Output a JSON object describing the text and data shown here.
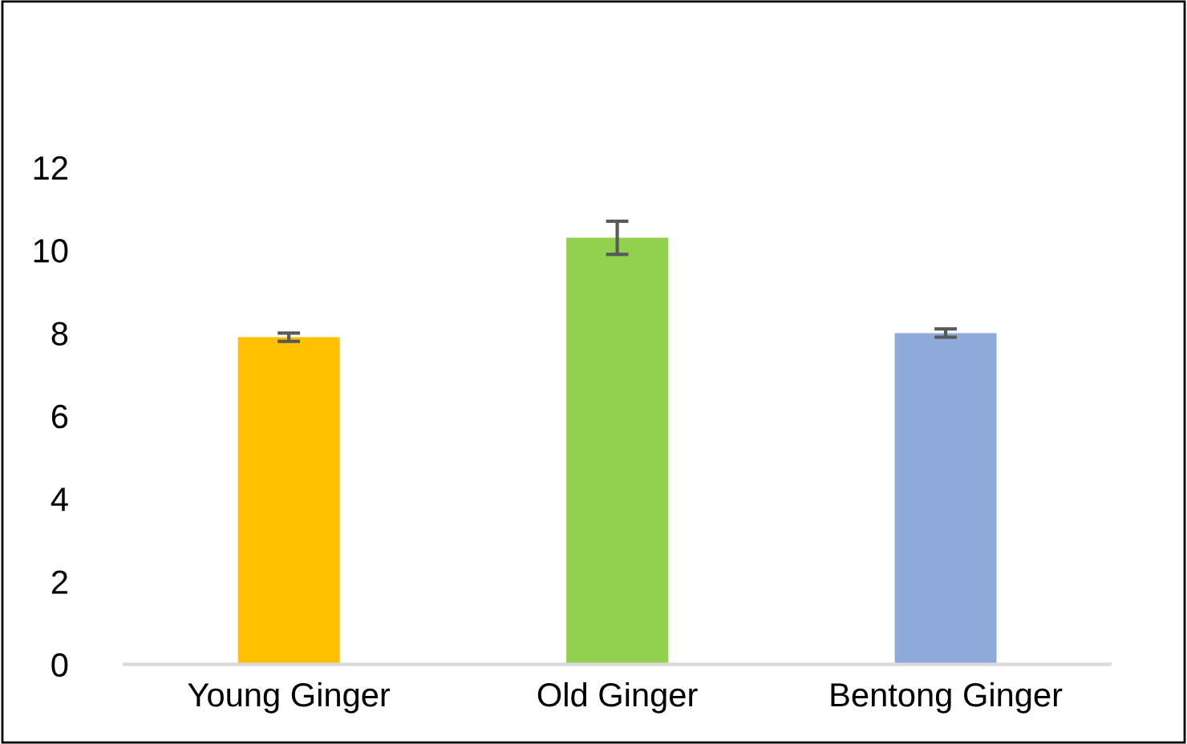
{
  "chart_data": {
    "type": "bar",
    "categories": [
      "Young Ginger",
      "Old Ginger",
      "Bentong Ginger"
    ],
    "values": [
      7.9,
      10.3,
      8.0
    ],
    "colors": [
      "#ffc000",
      "#92d050",
      "#8eaadb"
    ],
    "errors": [
      0.1,
      0.4,
      0.1
    ],
    "ylim": [
      0,
      12
    ],
    "yticks": [
      0,
      2,
      4,
      6,
      8,
      10,
      12
    ],
    "grid": false
  }
}
